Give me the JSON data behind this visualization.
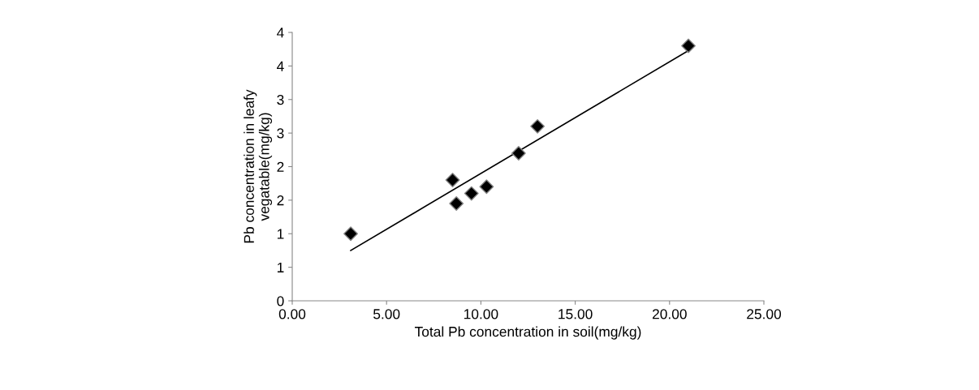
{
  "chart_data": {
    "type": "scatter",
    "xlabel": "Total Pb concentration in soil(mg/kg)",
    "ylabel": "Pb concentration in leafy\nvegatable(mg/kg)",
    "xlim": [
      0,
      25
    ],
    "xticks": [
      {
        "value": 0,
        "label": "0.00"
      },
      {
        "value": 5,
        "label": "5.00"
      },
      {
        "value": 10,
        "label": "10.00"
      },
      {
        "value": 15,
        "label": "15.00"
      },
      {
        "value": 20,
        "label": "20.00"
      },
      {
        "value": 25,
        "label": "25.00"
      }
    ],
    "ylim": [
      0,
      4
    ],
    "yticks": [
      0,
      {
        "value": 0.5,
        "label": "1"
      },
      1,
      {
        "value": 1.5,
        "label": "2"
      },
      2,
      {
        "value": 2.5,
        "label": "3"
      },
      3,
      {
        "value": 3.5,
        "label": "4"
      },
      4
    ],
    "grid": false,
    "marker": "diamond",
    "series": [
      {
        "color": "#000000",
        "x": [
          3.1,
          8.5,
          8.7,
          9.5,
          10.3,
          12.0,
          13.0,
          21.0
        ],
        "values": [
          1.0,
          1.8,
          1.45,
          1.6,
          1.7,
          2.2,
          2.6,
          3.8
        ]
      },
      {
        "type": "line",
        "color": "#000000",
        "x": [
          3.1,
          21.0
        ],
        "values": [
          0.75,
          3.73
        ],
        "marker": "none",
        "line_style": "solid"
      }
    ]
  }
}
